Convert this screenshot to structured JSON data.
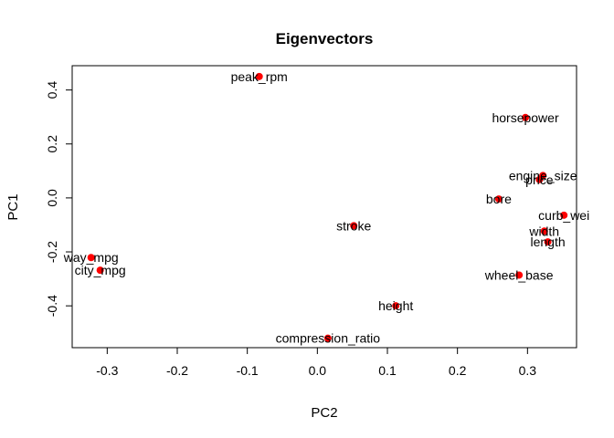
{
  "chart_data": {
    "type": "scatter",
    "title": "Eigenvectors",
    "xlabel": "PC2",
    "ylabel": "PC1",
    "xlim": [
      -0.35,
      0.37
    ],
    "ylim": [
      -0.555,
      0.49
    ],
    "xticks": [
      -0.3,
      -0.2,
      -0.1,
      0.0,
      0.1,
      0.2,
      0.3
    ],
    "xtick_labels": [
      "-0.3",
      "-0.2",
      "-0.1",
      "0.0",
      "0.1",
      "0.2",
      "0.3"
    ],
    "yticks": [
      -0.4,
      -0.2,
      0.0,
      0.2,
      0.4
    ],
    "ytick_labels": [
      "-0.4",
      "-0.2",
      "0.0",
      "0.2",
      "0.4"
    ],
    "grid": false,
    "point_color": "#ff0000",
    "points": [
      {
        "label": "peak_rpm",
        "x": -0.083,
        "y": 0.45
      },
      {
        "label": "horsepower",
        "x": 0.297,
        "y": 0.298
      },
      {
        "label": "engine_size",
        "x": 0.322,
        "y": 0.083
      },
      {
        "label": "price",
        "x": 0.317,
        "y": 0.068
      },
      {
        "label": "bore",
        "x": 0.259,
        "y": -0.004
      },
      {
        "label": "curb_wei",
        "x": 0.352,
        "y": -0.064
      },
      {
        "label": "stroke",
        "x": 0.052,
        "y": -0.103
      },
      {
        "label": "width",
        "x": 0.324,
        "y": -0.123
      },
      {
        "label": "length",
        "x": 0.329,
        "y": -0.163
      },
      {
        "label": "way_mpg",
        "x": -0.323,
        "y": -0.221
      },
      {
        "label": "city_mpg",
        "x": -0.31,
        "y": -0.268
      },
      {
        "label": "wheel_base",
        "x": 0.288,
        "y": -0.286
      },
      {
        "label": "height",
        "x": 0.112,
        "y": -0.4
      },
      {
        "label": "compression_ratio",
        "x": 0.015,
        "y": -0.52
      }
    ]
  }
}
